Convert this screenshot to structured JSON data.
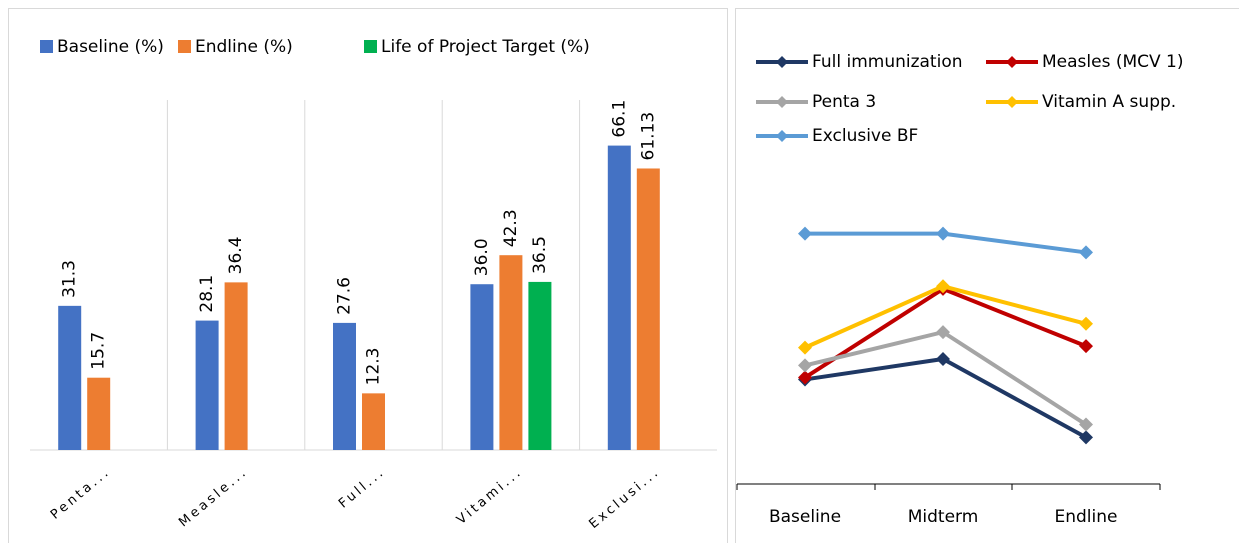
{
  "chart_data": [
    {
      "type": "bar",
      "categories": [
        "Penta...",
        "Measle...",
        "Full...",
        "Vitami...",
        "Exclusi..."
      ],
      "series": [
        {
          "name": "Baseline (%)",
          "color": "#4472c4",
          "values": [
            31.3,
            28.1,
            27.6,
            36.0,
            66.1
          ],
          "value_labels": [
            "31.3",
            "28.1",
            "27.6",
            "36.0",
            "66.1"
          ]
        },
        {
          "name": "Endline (%)",
          "color": "#ed7d31",
          "values": [
            15.7,
            36.4,
            12.3,
            42.3,
            61.13
          ],
          "value_labels": [
            "15.7",
            "36.4",
            "12.3",
            "42.3",
            "61.13"
          ]
        },
        {
          "name": "Life of Project Target (%)",
          "color": "#00b050",
          "values": [
            null,
            null,
            null,
            36.5,
            null
          ],
          "value_labels": [
            null,
            null,
            null,
            "36.5",
            null
          ]
        }
      ],
      "ylim": [
        0,
        76
      ],
      "legend": "top"
    },
    {
      "type": "line",
      "categories": [
        "Baseline",
        "Midterm",
        "Endline"
      ],
      "series": [
        {
          "name": "Full immunization",
          "color": "#1f3864",
          "values": [
            27.6,
            33.0,
            12.3
          ]
        },
        {
          "name": "Measles (MCV 1)",
          "color": "#c00000",
          "values": [
            28.1,
            51.5,
            36.4
          ]
        },
        {
          "name": "Penta 3",
          "color": "#a5a5a5",
          "values": [
            31.3,
            40.1,
            15.7
          ]
        },
        {
          "name": "Vitamin A supp.",
          "color": "#ffc000",
          "values": [
            36.0,
            52.2,
            42.3
          ]
        },
        {
          "name": "Exclusive BF",
          "color": "#5b9bd5",
          "values": [
            66.1,
            66.1,
            61.13
          ]
        }
      ],
      "ylim": [
        0,
        85
      ],
      "legend": "top"
    }
  ]
}
